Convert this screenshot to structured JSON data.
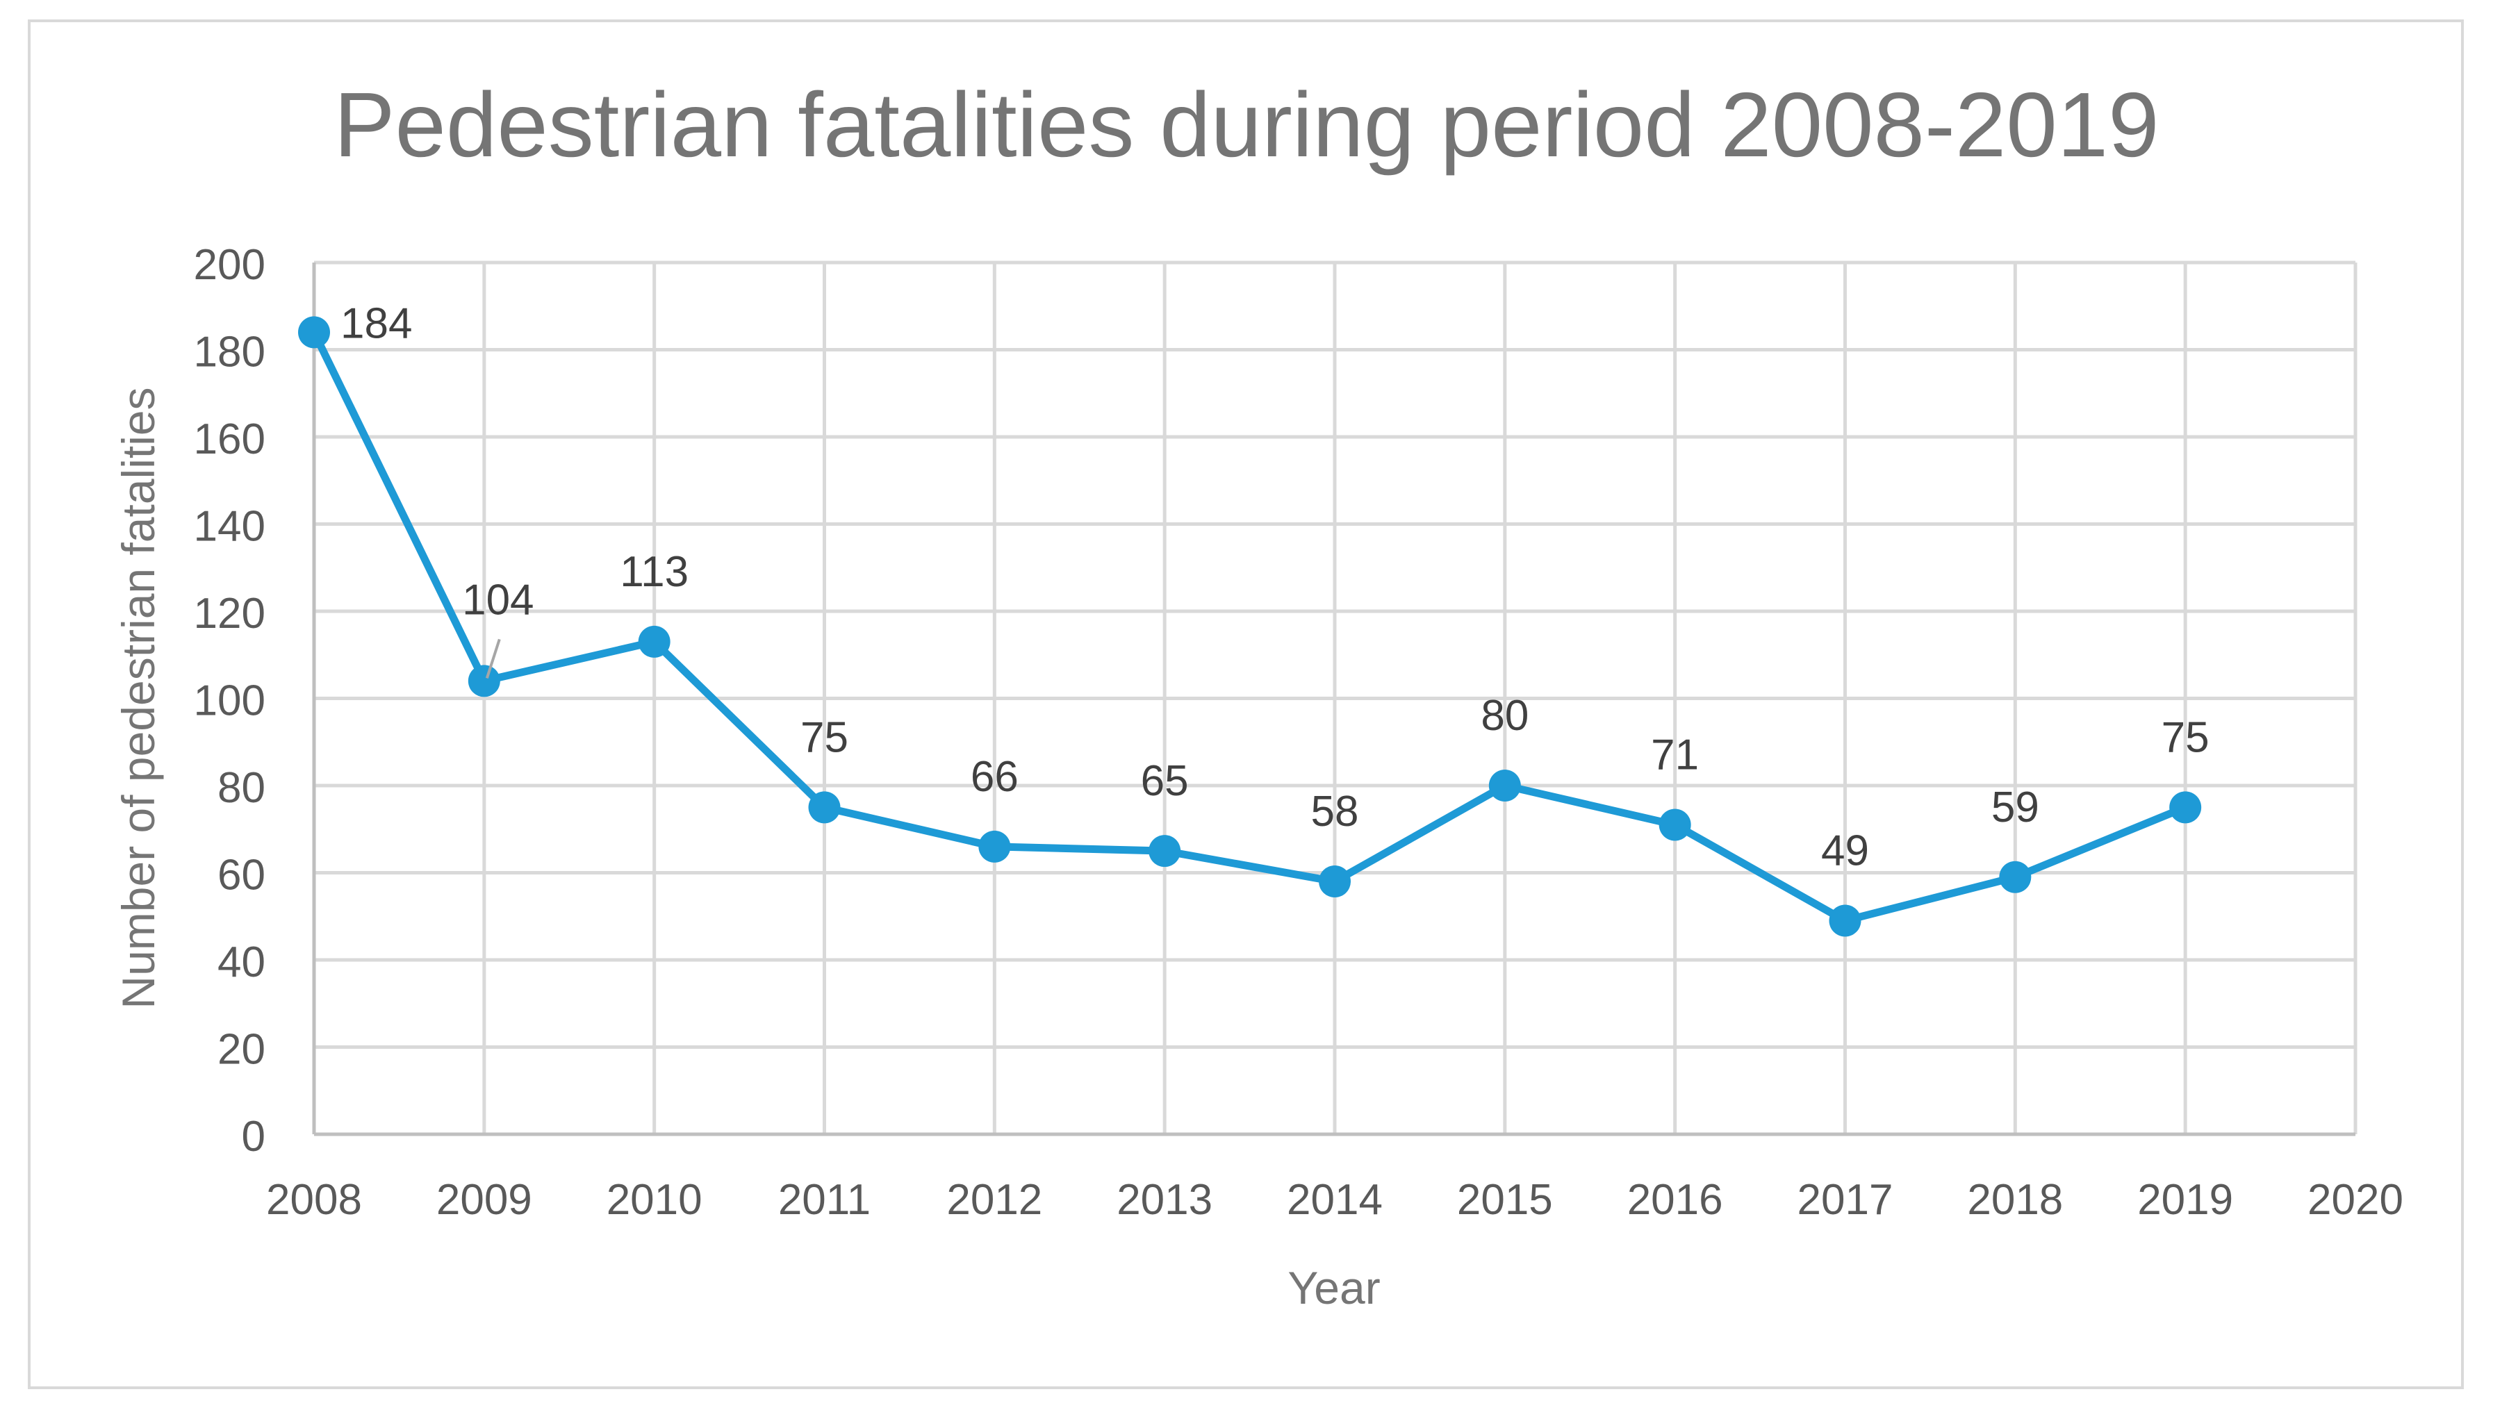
{
  "chart_data": {
    "type": "line",
    "title": "Pedestrian fatalities during period 2008-2019",
    "xlabel": "Year",
    "ylabel": "Number of pedestrian fatalities",
    "x": [
      2008,
      2009,
      2010,
      2011,
      2012,
      2013,
      2014,
      2015,
      2016,
      2017,
      2018,
      2019
    ],
    "xticks": [
      "2008",
      "2009",
      "2010",
      "2011",
      "2012",
      "2013",
      "2014",
      "2015",
      "2016",
      "2017",
      "2018",
      "2019",
      "2020"
    ],
    "xlim": [
      2008,
      2020
    ],
    "ylim": [
      0,
      200
    ],
    "yticks": [
      "0",
      "20",
      "40",
      "60",
      "80",
      "100",
      "120",
      "140",
      "160",
      "180",
      "200"
    ],
    "grid": true,
    "series": [
      {
        "name": "Pedestrian fatalities",
        "color": "#1e9ad6",
        "values": [
          184,
          104,
          113,
          75,
          66,
          65,
          58,
          80,
          71,
          49,
          59,
          75
        ],
        "labels": [
          "184",
          "104",
          "113",
          "75",
          "66",
          "65",
          "58",
          "80",
          "71",
          "49",
          "59",
          "75"
        ]
      }
    ]
  }
}
